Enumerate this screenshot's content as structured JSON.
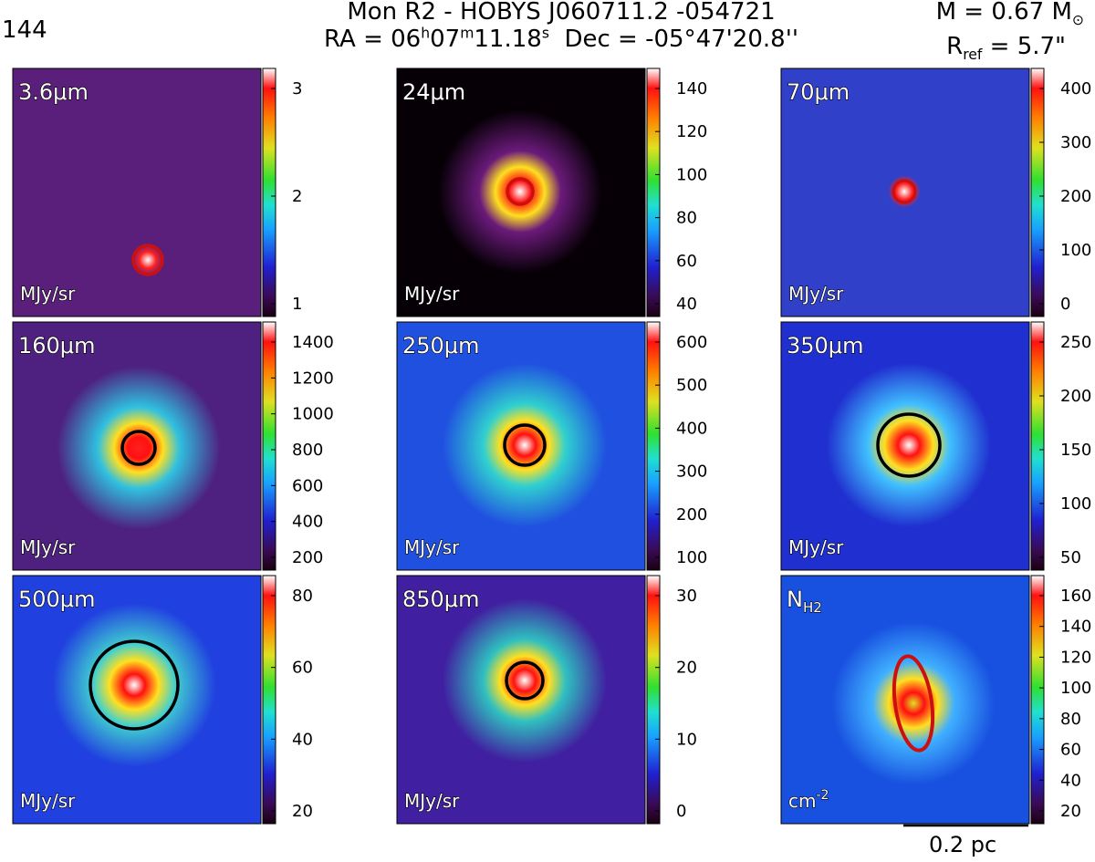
{
  "header": {
    "figure_index": "144",
    "title_prefix": "Mon R2 - HOBYS J060711.2 -054721",
    "ra_label": "RA = 06",
    "ra_h": "h",
    "ra_min": "07",
    "ra_m": "m",
    "ra_sec": "11.18",
    "ra_s": "s",
    "dec_text": "Dec = -05°47'20.8''",
    "mass_text": "M = 0.67 M",
    "mass_sun": "⊙",
    "rref_r": "R",
    "rref_sub": "ref",
    "rref_value": " = 5.7\""
  },
  "panels": [
    {
      "id": "3.6um",
      "label": "3.6μm",
      "unit": "MJy/sr",
      "unit_sup": "",
      "ticks": [
        "3",
        "2",
        "1"
      ],
      "colormap": "cubehelix",
      "ellipse": {
        "color": "#cc1010",
        "shape": "circle"
      }
    },
    {
      "id": "24um",
      "label": "24μm",
      "unit": "MJy/sr",
      "unit_sup": "",
      "ticks": [
        "140",
        "120",
        "100",
        "80",
        "60",
        "40"
      ],
      "colormap": "cubehelix",
      "ellipse": {
        "color": "#cc1010",
        "shape": "circle"
      }
    },
    {
      "id": "70um",
      "label": "70μm",
      "unit": "MJy/sr",
      "unit_sup": "",
      "ticks": [
        "400",
        "300",
        "200",
        "100",
        "0"
      ],
      "colormap": "cubehelix",
      "ellipse": {
        "color": "#cc1010",
        "shape": "circle"
      }
    },
    {
      "id": "160um",
      "label": "160μm",
      "unit": "MJy/sr",
      "unit_sup": "",
      "ticks": [
        "1400",
        "1200",
        "1000",
        "800",
        "600",
        "400",
        "200"
      ],
      "colormap": "cubehelix",
      "ellipse": {
        "color": "#000000",
        "shape": "circle"
      }
    },
    {
      "id": "250um",
      "label": "250μm",
      "unit": "MJy/sr",
      "unit_sup": "",
      "ticks": [
        "600",
        "500",
        "400",
        "300",
        "200",
        "100"
      ],
      "colormap": "cubehelix",
      "ellipse": {
        "color": "#000000",
        "shape": "circle"
      }
    },
    {
      "id": "350um",
      "label": "350μm",
      "unit": "MJy/sr",
      "unit_sup": "",
      "ticks": [
        "250",
        "200",
        "150",
        "100",
        "50"
      ],
      "colormap": "cubehelix",
      "ellipse": {
        "color": "#000000",
        "shape": "circle"
      }
    },
    {
      "id": "500um",
      "label": "500μm",
      "unit": "MJy/sr",
      "unit_sup": "",
      "ticks": [
        "80",
        "60",
        "40",
        "20"
      ],
      "colormap": "cubehelix",
      "ellipse": {
        "color": "#000000",
        "shape": "circle"
      }
    },
    {
      "id": "850um",
      "label": "850μm",
      "unit": "MJy/sr",
      "unit_sup": "",
      "ticks": [
        "30",
        "20",
        "10",
        "0"
      ],
      "colormap": "cubehelix",
      "ellipse": {
        "color": "#000000",
        "shape": "circle"
      }
    },
    {
      "id": "NH2",
      "label": "N",
      "label_sub": "H2",
      "unit": "cm",
      "unit_sup": "-2",
      "ticks": [
        "160",
        "140",
        "120",
        "100",
        "80",
        "60",
        "40",
        "20"
      ],
      "colormap": "cubehelix",
      "ellipse": {
        "color": "#cc1010",
        "shape": "ellipse"
      }
    }
  ],
  "scalebar": {
    "label": "0.2 pc"
  }
}
